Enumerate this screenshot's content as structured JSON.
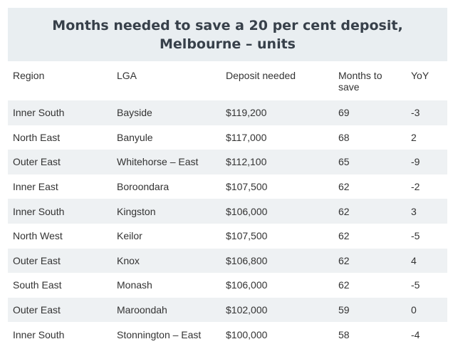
{
  "title": "Months needed to save a 20 per cent deposit, Melbourne – units",
  "columns": [
    "Region",
    "LGA",
    "Deposit needed",
    "Months to save",
    "YoY"
  ],
  "rows": [
    [
      "Inner South",
      "Bayside",
      "$119,200",
      "69",
      "-3"
    ],
    [
      "North East",
      "Banyule",
      "$117,000",
      "68",
      "2"
    ],
    [
      "Outer East",
      "Whitehorse – East",
      "$112,100",
      "65",
      "-9"
    ],
    [
      "Inner East",
      "Boroondara",
      "$107,500",
      "62",
      "-2"
    ],
    [
      "Inner South",
      "Kingston",
      "$106,000",
      "62",
      "3"
    ],
    [
      "North West",
      "Keilor",
      "$107,500",
      "62",
      "-5"
    ],
    [
      "Outer East",
      "Knox",
      "$106,800",
      "62",
      "4"
    ],
    [
      "South East",
      "Monash",
      "$106,000",
      "62",
      "-5"
    ],
    [
      "Outer East",
      "Maroondah",
      "$102,000",
      "59",
      "0"
    ],
    [
      "Inner South",
      "Stonnington – East",
      "$100,000",
      "58",
      "-4"
    ]
  ]
}
